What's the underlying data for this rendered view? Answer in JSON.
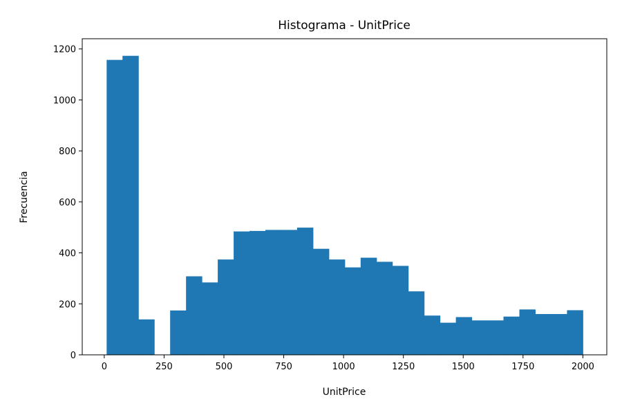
{
  "chart_data": {
    "type": "histogram",
    "title": "Histograma - UnitPrice",
    "xlabel": "UnitPrice",
    "ylabel": "Frecuencia",
    "xlim": [
      -92,
      2100
    ],
    "ylim": [
      0,
      1240
    ],
    "x_ticks": [
      0,
      250,
      500,
      750,
      1000,
      1250,
      1500,
      1750,
      2000
    ],
    "y_ticks": [
      0,
      200,
      400,
      600,
      800,
      1000,
      1200
    ],
    "grid": false,
    "color": "#1f77b4",
    "bin_edges": [
      10,
      76.3,
      142.7,
      209,
      275.3,
      341.7,
      408,
      474.3,
      540.7,
      607,
      673.3,
      739.7,
      806,
      872.3,
      938.7,
      1005,
      1071.3,
      1137.7,
      1204,
      1270.3,
      1336.7,
      1403,
      1469.3,
      1535.7,
      1602,
      1668.3,
      1734.7,
      1801,
      1867.3,
      1933.7,
      2000
    ],
    "counts": [
      1157,
      1173,
      139,
      0,
      174,
      308,
      284,
      374,
      484,
      486,
      490,
      490,
      499,
      416,
      374,
      343,
      381,
      365,
      349,
      249,
      154,
      126,
      148,
      135,
      135,
      150,
      178,
      160,
      160,
      175
    ]
  }
}
